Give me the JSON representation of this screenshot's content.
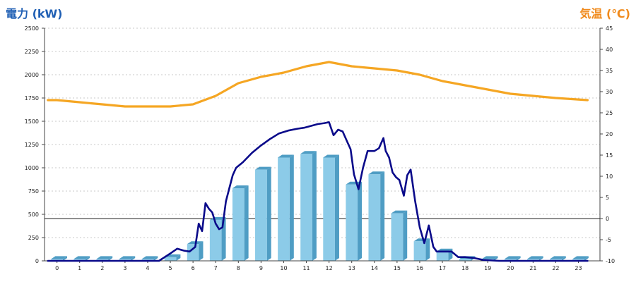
{
  "chart_data": {
    "type": "bar+line",
    "left_axis_title": "電力 (kW)",
    "right_axis_title": "気温 (℃)",
    "categories": [
      "0",
      "1",
      "2",
      "3",
      "4",
      "5",
      "6",
      "7",
      "8",
      "9",
      "10",
      "11",
      "12",
      "13",
      "14",
      "15",
      "16",
      "17",
      "18",
      "19",
      "20",
      "21",
      "22",
      "23"
    ],
    "y_left": {
      "min": 0,
      "max": 2500,
      "ticks": [
        0,
        250,
        500,
        750,
        1000,
        1250,
        1500,
        1750,
        2000,
        2250,
        2500
      ]
    },
    "y_right": {
      "min": -10,
      "max": 45,
      "ticks": [
        -10,
        -5,
        0,
        5,
        10,
        15,
        20,
        25,
        30,
        35,
        40,
        45
      ]
    },
    "reference_line_right": 0,
    "grid": "horizontal dotted",
    "series": [
      {
        "kind": "bar",
        "axis": "left",
        "color": "#8ccbe8",
        "color_dark": "#4f9dc4",
        "values": [
          20,
          20,
          20,
          20,
          20,
          40,
          180,
          440,
          780,
          980,
          1110,
          1150,
          1110,
          820,
          930,
          510,
          210,
          100,
          20,
          20,
          20,
          20,
          20,
          20
        ]
      },
      {
        "kind": "line",
        "axis": "left",
        "color": "#0a0a8a",
        "x": [
          -0.4,
          0,
          1,
          2,
          3,
          4,
          4.5,
          5,
          5.3,
          5.6,
          5.85,
          6.1,
          6.25,
          6.4,
          6.55,
          6.7,
          6.85,
          7.0,
          7.15,
          7.3,
          7.45,
          7.6,
          7.75,
          7.9,
          8.2,
          8.6,
          9.0,
          9.4,
          9.8,
          10.2,
          10.6,
          10.9,
          11.2,
          11.5,
          11.8,
          12.0,
          12.2,
          12.4,
          12.6,
          12.8,
          12.95,
          13.1,
          13.3,
          13.5,
          13.7,
          14.0,
          14.2,
          14.4,
          14.5,
          14.65,
          14.8,
          14.95,
          15.1,
          15.3,
          15.45,
          15.6,
          15.8,
          16.0,
          16.2,
          16.4,
          16.6,
          16.75,
          16.9,
          17.1,
          17.4,
          17.7,
          18.0,
          18.4,
          18.8,
          19.5,
          20,
          21,
          22,
          23.4
        ],
        "values": [
          0,
          0,
          0,
          0,
          0,
          0,
          0,
          80,
          130,
          110,
          100,
          150,
          400,
          320,
          620,
          560,
          520,
          400,
          340,
          360,
          640,
          780,
          920,
          1000,
          1060,
          1160,
          1240,
          1310,
          1370,
          1400,
          1420,
          1430,
          1450,
          1470,
          1480,
          1490,
          1350,
          1410,
          1390,
          1280,
          1200,
          930,
          770,
          1000,
          1180,
          1180,
          1210,
          1320,
          1180,
          1110,
          950,
          900,
          870,
          700,
          920,
          980,
          640,
          360,
          190,
          380,
          150,
          100,
          100,
          100,
          100,
          40,
          40,
          30,
          10,
          0,
          0,
          0,
          0,
          0
        ]
      },
      {
        "kind": "line",
        "axis": "right",
        "color": "#f5a623",
        "x": [
          -0.4,
          0,
          1,
          2,
          3,
          4,
          5,
          6,
          7,
          8,
          9,
          10,
          11,
          12,
          13,
          14,
          15,
          16,
          17,
          18,
          19,
          20,
          21,
          22,
          23.4
        ],
        "values": [
          28,
          28,
          27.5,
          27,
          26.5,
          26.5,
          26.5,
          27,
          29,
          32,
          33.5,
          34.5,
          36,
          37,
          36,
          35.5,
          35,
          34,
          32.5,
          31.5,
          30.5,
          29.5,
          29,
          28.5,
          28
        ]
      }
    ]
  }
}
